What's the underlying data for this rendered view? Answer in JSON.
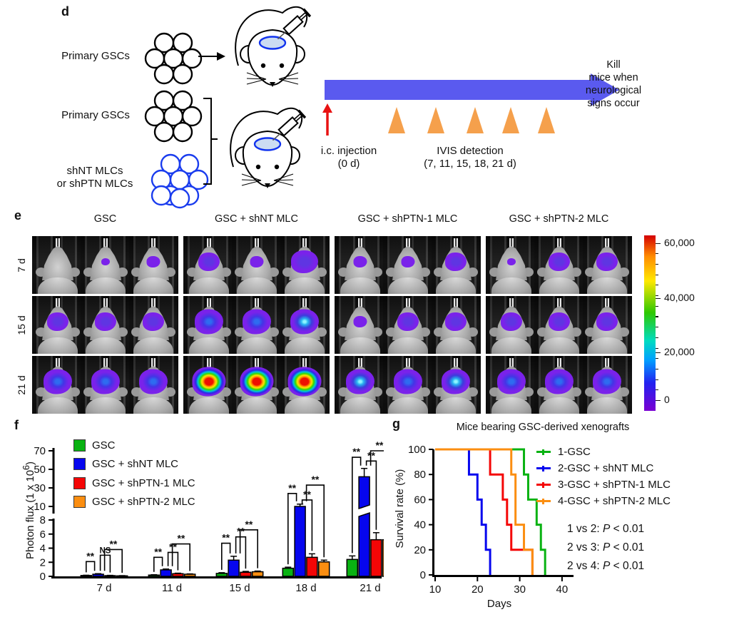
{
  "figure": {
    "panel_d": {
      "label": "d",
      "primary_gscs_1": "Primary GSCs",
      "primary_gscs_2": "Primary GSCs",
      "mlc_line1": "shNT MLCs",
      "mlc_line2": "or shPTN MLCs",
      "injection_line1": "i.c. injection",
      "injection_line2": "(0 d)",
      "ivis_line1": "IVIS detection",
      "ivis_line2": "(7, 11, 15, 18, 21 d)",
      "kill_lines": [
        "Kill",
        "mice when",
        "neurological",
        "signs occur"
      ],
      "colors": {
        "timeline_arrow": "#5a5aef",
        "marker_triangle": "#f5a04c",
        "injection_arrow": "#e81212",
        "mlc_cluster_stroke": "#1a3cee",
        "gsc_cluster_stroke": "#000000",
        "injection_site": "#ccdcf2"
      }
    },
    "panel_e": {
      "label": "e",
      "columns": [
        "GSC",
        "GSC + shNT MLC",
        "GSC + shPTN-1 MLC",
        "GSC + shPTN-2 MLC"
      ],
      "row_labels": [
        "7 d",
        "15 d",
        "21 d"
      ],
      "cells": [
        [
          [
            "none",
            "tiny",
            "small"
          ],
          [
            "medium",
            "small",
            "large"
          ],
          [
            "small",
            "small",
            "medium"
          ],
          [
            "tiny",
            "medium",
            "medium"
          ]
        ],
        [
          [
            "medium",
            "medium",
            "medium"
          ],
          [
            "blue",
            "blue",
            "cyan"
          ],
          [
            "small",
            "medium",
            "medium"
          ],
          [
            "medium",
            "medium",
            "medium"
          ]
        ],
        [
          [
            "blue",
            "blue",
            "blue"
          ],
          [
            "hot",
            "hot",
            "hot"
          ],
          [
            "cyan",
            "blue",
            "cyan"
          ],
          [
            "blue",
            "blue",
            "blue"
          ]
        ]
      ],
      "colorbar_labels": [
        "60,000",
        "40,000",
        "20,000",
        "0"
      ]
    }
  },
  "chart_data": [
    {
      "id": "f",
      "type": "bar",
      "panel_label": "f",
      "ylabel_prefix": "Photon flux (1 x 10",
      "ylabel_sup": "6",
      "ylabel_suffix": ")",
      "categories": [
        "7 d",
        "11 d",
        "15 d",
        "18 d",
        "21 d"
      ],
      "axis_break": {
        "lower_ticks": [
          0,
          2,
          4,
          6,
          8
        ],
        "upper_ticks": [
          10,
          30,
          50,
          70
        ]
      },
      "series": [
        {
          "name": "GSC",
          "color": "#09b212",
          "values": [
            0.12,
            0.18,
            0.42,
            1.15,
            2.4
          ],
          "errors": [
            0.04,
            0.05,
            0.1,
            0.15,
            0.5
          ]
        },
        {
          "name": "GSC + shNT MLC",
          "color": "#0606ee",
          "values": [
            0.3,
            0.92,
            2.3,
            10,
            42
          ],
          "errors": [
            0.08,
            0.12,
            0.55,
            2.5,
            9
          ]
        },
        {
          "name": "GSC + shPTN-1 MLC",
          "color": "#f40606",
          "values": [
            0.1,
            0.38,
            0.58,
            2.7,
            5.2
          ],
          "errors": [
            0.04,
            0.07,
            0.12,
            0.5,
            1.0
          ]
        },
        {
          "name": "GSC + shPTN-2 MLC",
          "color": "#fb8e11",
          "values": [
            0.07,
            0.3,
            0.65,
            2.05,
            5.2
          ],
          "errors": [
            0.03,
            0.05,
            0.1,
            0.25,
            0.9
          ]
        }
      ],
      "significance": [
        [
          {
            "pair": [
              0,
              1
            ],
            "top": 2.1,
            "label": "**"
          },
          {
            "pair": [
              1,
              2
            ],
            "top": 3.0,
            "label": "NS"
          },
          {
            "pair": [
              1,
              3
            ],
            "top": 3.8,
            "label": "**"
          }
        ],
        [
          {
            "pair": [
              0,
              1
            ],
            "top": 2.7,
            "label": "**"
          },
          {
            "pair": [
              1,
              2
            ],
            "top": 3.4,
            "label": "**"
          },
          {
            "pair": [
              1,
              3
            ],
            "top": 4.6,
            "label": "**"
          }
        ],
        [
          {
            "pair": [
              0,
              1
            ],
            "top": 4.7,
            "label": "**"
          },
          {
            "pair": [
              1,
              2
            ],
            "top": 5.6,
            "label": "**"
          },
          {
            "pair": [
              1,
              3
            ],
            "top": 6.6,
            "label": "**"
          }
        ],
        [
          {
            "pair": [
              0,
              1
            ],
            "top": 24,
            "label": "**"
          },
          {
            "pair": [
              1,
              2
            ],
            "top": 17,
            "label": "**"
          },
          {
            "pair": [
              1,
              3
            ],
            "top": 33,
            "label": "**"
          }
        ],
        [
          {
            "pair": [
              0,
              1
            ],
            "top": 63,
            "label": "**"
          },
          {
            "pair": [
              1,
              2
            ],
            "top": 59,
            "label": "**"
          },
          {
            "pair": [
              1,
              3
            ],
            "top": 70,
            "label": "**"
          }
        ]
      ]
    },
    {
      "id": "g",
      "type": "line",
      "panel_label": "g",
      "title": "Mice bearing GSC-derived xenografts",
      "xlabel": "Days",
      "ylabel": "Survival rate (%)",
      "xlim": [
        10,
        40
      ],
      "ylim": [
        0,
        100
      ],
      "xticks": [
        10,
        20,
        30,
        40
      ],
      "yticks": [
        0,
        20,
        40,
        60,
        80,
        100
      ],
      "series": [
        {
          "name": "1-GSC",
          "color": "#09b212",
          "death_days": [
            31,
            32,
            34,
            35,
            36
          ]
        },
        {
          "name": "2-GSC + shNT MLC",
          "color": "#0606ee",
          "death_days": [
            18,
            20,
            21,
            22,
            23
          ]
        },
        {
          "name": "3-GSC + shPTN-1 MLC",
          "color": "#f40606",
          "death_days": [
            23,
            26,
            27,
            28,
            33
          ]
        },
        {
          "name": "4-GSC + shPTN-2 MLC",
          "color": "#fb8e11",
          "death_days": [
            28,
            29,
            29,
            31,
            33
          ]
        }
      ],
      "annotations": [
        {
          "prefix": "1 vs 2: ",
          "p": "P",
          "suffix": " < 0.01"
        },
        {
          "prefix": "2 vs 3: ",
          "p": "P",
          "suffix": " < 0.01"
        },
        {
          "prefix": "2 vs 4: ",
          "p": "P",
          "suffix": " < 0.01"
        }
      ]
    }
  ]
}
